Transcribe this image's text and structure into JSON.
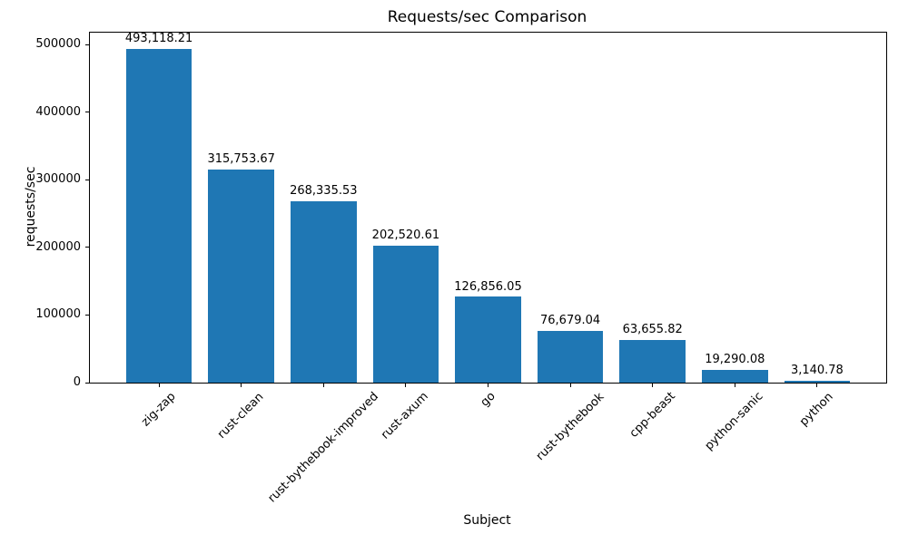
{
  "chart_data": {
    "type": "bar",
    "title": "Requests/sec Comparison",
    "xlabel": "Subject",
    "ylabel": "requests/sec",
    "categories": [
      "zig-zap",
      "rust-clean",
      "rust-bythebook-improved",
      "rust-axum",
      "go",
      "rust-bythebook",
      "cpp-beast",
      "python-sanic",
      "python"
    ],
    "values": [
      493118.21,
      315753.67,
      268335.53,
      202520.61,
      126856.05,
      76679.04,
      63655.82,
      19290.08,
      3140.78
    ],
    "value_labels": [
      "493,118.21",
      "315,753.67",
      "268,335.53",
      "202,520.61",
      "126,856.05",
      "76,679.04",
      "63,655.82",
      "19,290.08",
      "3,140.78"
    ],
    "yticks": [
      0,
      100000,
      200000,
      300000,
      400000,
      500000
    ],
    "ytick_labels": [
      "0",
      "100000",
      "200000",
      "300000",
      "400000",
      "500000"
    ],
    "ylim": [
      0,
      517774
    ],
    "bar_color": "#1f77b4",
    "grid": false,
    "legend": null,
    "xtick_rotation_deg": 45
  }
}
